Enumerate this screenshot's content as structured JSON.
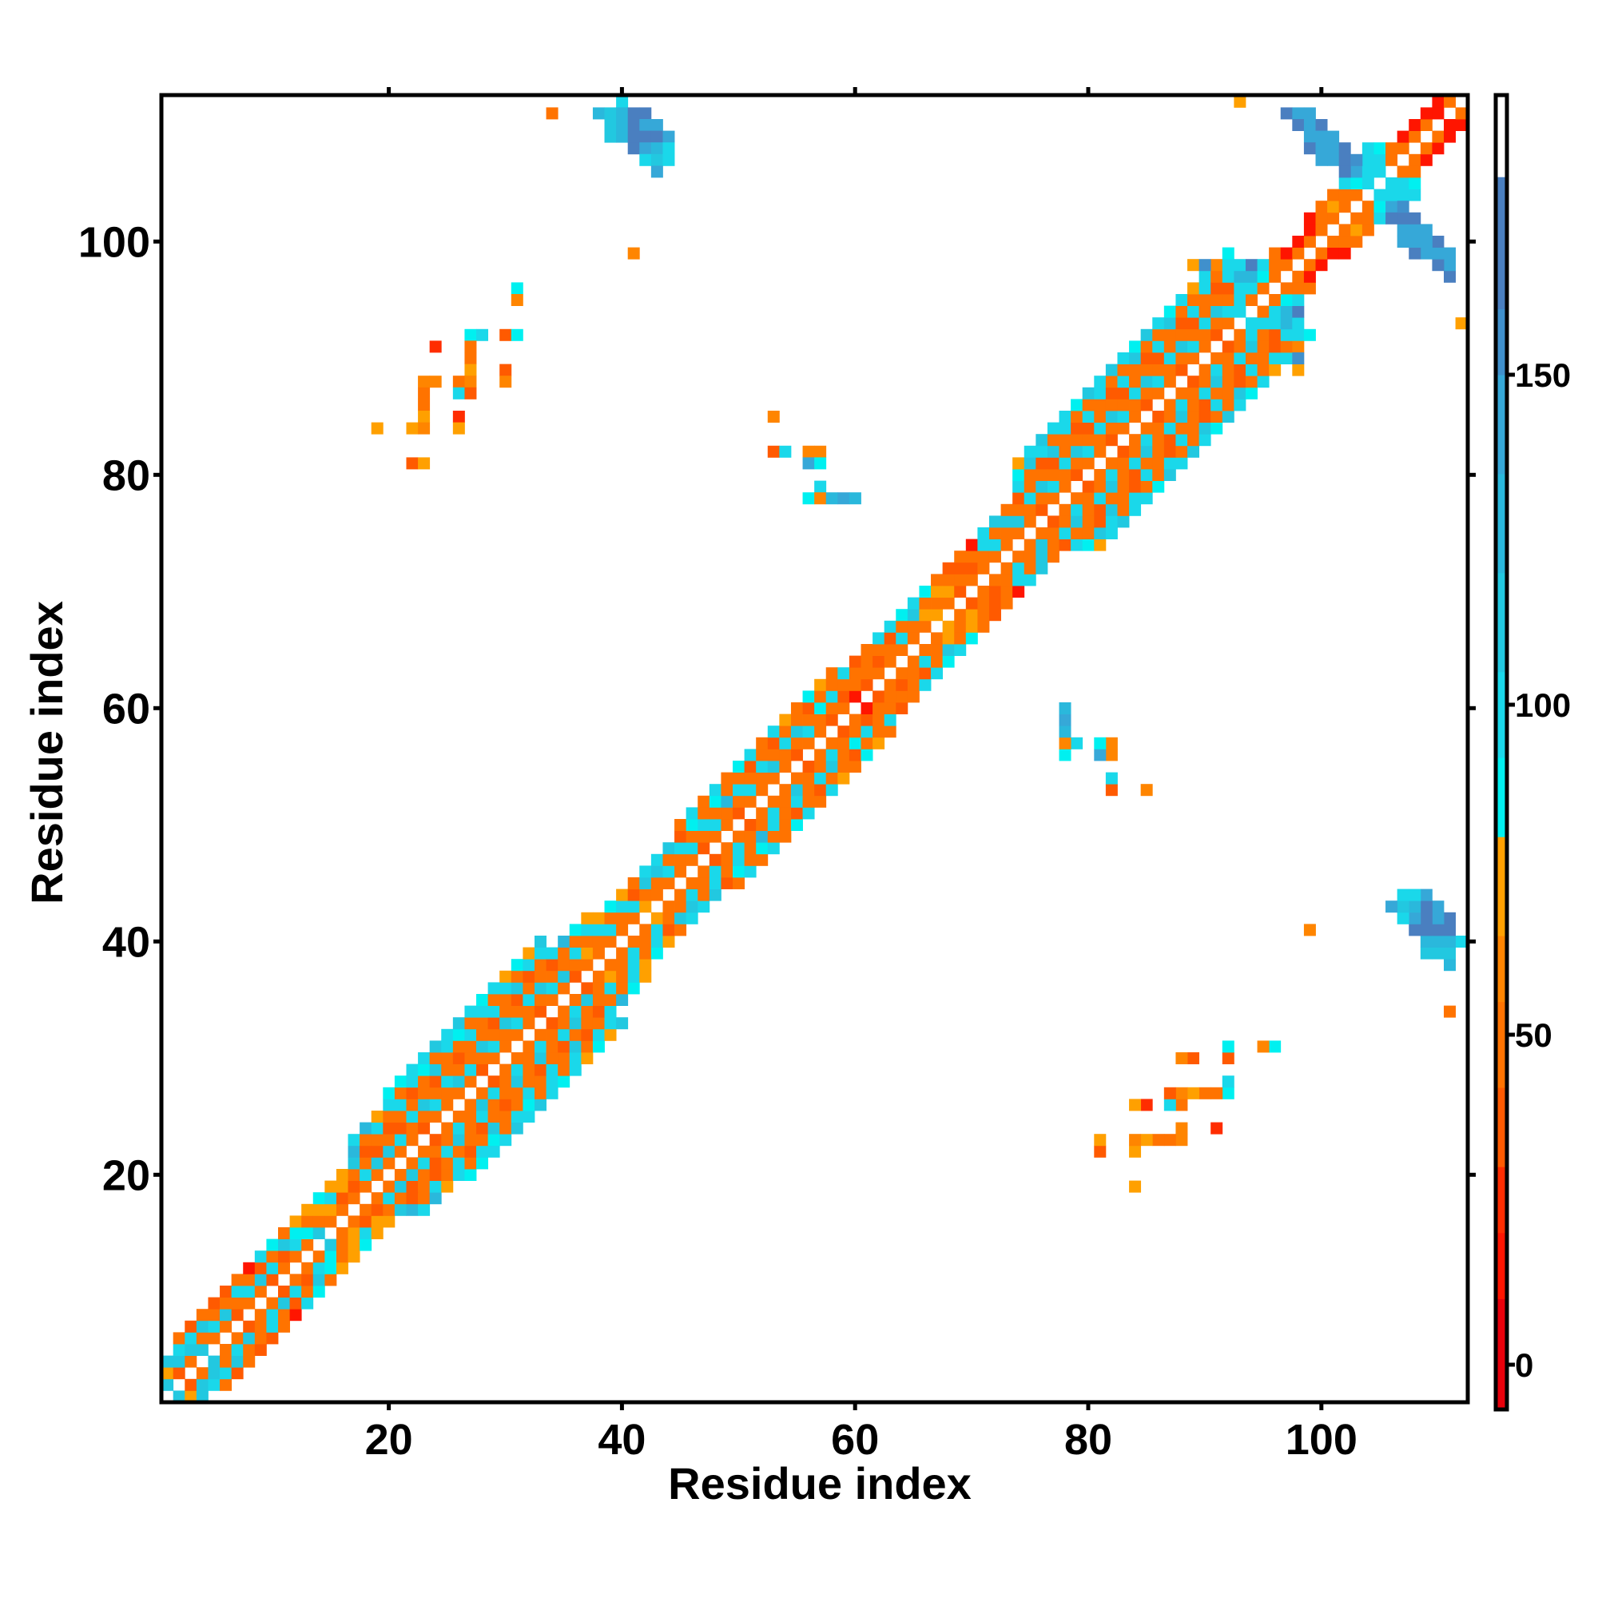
{
  "chart_data": {
    "type": "heatmap",
    "title": "",
    "xlabel": "Residue index",
    "ylabel": "Residue index",
    "xlim": [
      0.5,
      112.5
    ],
    "ylim": [
      0.5,
      112.5
    ],
    "xticks": [
      "20",
      "40",
      "60",
      "80",
      "100"
    ],
    "yticks": [
      "20",
      "40",
      "60",
      "80",
      "100"
    ],
    "xtick_values": [
      20,
      40,
      60,
      80,
      100
    ],
    "ytick_values": [
      20,
      40,
      60,
      80,
      100
    ],
    "grid": false,
    "symmetric": true,
    "colorbar": {
      "placement": "right",
      "range": [
        -6.8,
        192.4
      ],
      "ticks": [
        "0",
        "50",
        "100",
        "150"
      ],
      "tick_values": [
        0,
        50,
        100,
        150
      ],
      "scale": [
        [
          -7,
          "#e8000b"
        ],
        [
          10,
          "#ff1500"
        ],
        [
          20,
          "#ff2d00"
        ],
        [
          30,
          "#ff5a00"
        ],
        [
          42,
          "#ff7300"
        ],
        [
          55,
          "#ff8500"
        ],
        [
          65,
          "#ffa000"
        ],
        [
          80,
          "#00f0f0"
        ],
        [
          92,
          "#1ad8ea"
        ],
        [
          105,
          "#22c8e0"
        ],
        [
          120,
          "#2ab8dc"
        ],
        [
          135,
          "#36a8d8"
        ],
        [
          150,
          "#4090cc"
        ],
        [
          160,
          "#4a7fc0"
        ],
        [
          180,
          "#ffffff"
        ]
      ]
    },
    "band_note": "band_rows[i] lists values for cells (x=i+1, y=x+1..x+k)",
    "band_rows": [
      [
        105,
        70,
        105
      ],
      [
        40,
        105,
        100,
        45
      ],
      [
        45,
        105,
        100,
        30
      ],
      [
        105,
        45,
        105,
        45
      ],
      [
        45,
        100,
        45,
        30
      ],
      [
        45,
        105,
        45,
        40
      ],
      [
        30,
        45,
        100,
        45
      ],
      [
        45,
        100,
        45,
        10
      ],
      [
        45,
        105,
        40,
        100
      ],
      [
        40,
        100,
        45,
        90
      ],
      [
        45,
        40,
        105,
        45
      ],
      [
        45,
        100,
        90,
        70
      ],
      [
        45,
        90,
        45,
        70
      ],
      [
        105,
        45,
        70,
        90
      ],
      [
        45,
        70,
        100,
        70
      ],
      [
        45,
        40,
        70,
        70
      ],
      [
        45,
        40,
        45,
        105,
        125,
        100
      ],
      [
        45,
        100,
        45,
        30,
        45,
        125
      ],
      [
        45,
        105,
        40,
        45,
        100,
        70
      ],
      [
        45,
        105,
        45,
        30,
        45,
        100,
        90
      ],
      [
        45,
        100,
        30,
        45,
        100,
        45,
        90
      ],
      [
        45,
        45,
        100,
        45,
        30,
        100,
        100
      ],
      [
        30,
        45,
        105,
        45,
        45,
        90,
        100
      ],
      [
        45,
        100,
        45,
        30,
        105,
        45,
        105
      ],
      [
        45,
        45,
        100,
        45,
        45,
        100,
        100
      ],
      [
        45,
        105,
        45,
        30,
        45,
        90,
        105
      ],
      [
        45,
        100,
        45,
        45,
        100,
        45,
        100
      ],
      [
        30,
        45,
        105,
        45,
        45,
        100,
        90
      ],
      [
        45,
        100,
        45,
        30,
        100,
        45,
        100
      ],
      [
        45,
        45,
        105,
        45,
        45,
        100,
        70
      ],
      [
        45,
        100,
        45,
        30,
        105,
        45,
        90
      ],
      [
        45,
        45,
        100,
        45,
        40,
        100,
        70
      ],
      [
        30,
        45,
        105,
        45,
        45,
        100,
        105
      ],
      [
        45,
        100,
        45,
        30,
        100
      ],
      [
        45,
        105,
        45,
        45,
        125
      ],
      [
        30,
        45,
        100,
        45,
        90
      ],
      [
        45,
        70,
        45,
        100,
        70
      ],
      [
        45,
        45,
        100,
        70
      ],
      [
        45,
        100,
        45,
        90
      ],
      [
        45,
        45,
        100,
        70
      ],
      [
        45,
        100,
        30,
        45
      ],
      [
        70,
        45,
        105,
        100
      ],
      [
        45,
        45,
        105,
        100
      ],
      [
        45,
        100,
        45,
        105
      ],
      [
        45,
        45,
        100,
        30,
        45
      ],
      [
        45,
        100,
        45,
        90,
        100
      ],
      [
        30,
        45,
        100,
        45,
        45
      ],
      [
        45,
        100,
        45,
        90,
        100
      ],
      [
        45,
        45,
        125,
        45,
        45
      ],
      [
        30,
        45,
        100,
        45,
        90
      ],
      [
        45,
        100,
        45,
        30,
        100
      ],
      [
        45,
        45,
        100,
        45,
        45
      ],
      [
        45,
        105,
        45,
        30,
        100
      ],
      [
        45,
        45,
        100,
        45,
        70
      ],
      [
        30,
        45,
        105,
        45,
        45
      ],
      [
        45,
        100,
        45,
        30,
        90
      ],
      [
        45,
        45,
        90,
        45,
        70
      ],
      [
        30,
        45,
        100,
        45,
        45
      ],
      [
        45,
        30,
        45,
        100
      ],
      [
        10,
        45,
        45,
        30
      ],
      [
        30,
        45,
        45,
        45
      ],
      [
        45,
        30,
        45,
        100
      ],
      [
        45,
        45,
        30,
        100
      ],
      [
        45,
        100,
        45,
        90
      ],
      [
        45,
        45,
        105,
        100
      ],
      [
        45,
        70,
        45,
        90
      ],
      [
        70,
        45,
        70,
        45
      ],
      [
        45,
        70,
        45,
        30
      ],
      [
        30,
        45,
        30,
        45
      ],
      [
        45,
        30,
        45,
        10
      ],
      [
        45,
        45,
        100,
        100
      ],
      [
        45,
        100,
        45,
        105
      ],
      [
        45,
        45,
        105,
        45
      ],
      [
        45,
        105,
        45,
        30,
        100,
        90,
        70
      ],
      [
        45,
        45,
        100,
        45,
        45,
        105,
        100
      ],
      [
        30,
        45,
        105,
        45,
        30,
        100,
        105
      ],
      [
        45,
        100,
        45,
        30,
        105,
        45,
        100
      ],
      [
        45,
        45,
        100,
        45,
        45,
        100,
        100
      ],
      [
        30,
        45,
        105,
        45,
        30,
        45,
        90
      ],
      [
        45,
        100,
        45,
        30,
        100,
        45,
        105
      ],
      [
        45,
        45,
        100,
        45,
        45,
        100,
        100
      ],
      [
        30,
        45,
        105,
        45,
        30,
        45,
        105
      ],
      [
        45,
        100,
        45,
        30,
        100,
        45,
        100
      ],
      [
        45,
        45,
        100,
        45,
        45,
        105,
        90
      ],
      [
        30,
        45,
        105,
        45,
        30,
        45,
        105
      ],
      [
        45,
        100,
        45,
        30,
        100,
        45,
        100
      ],
      [
        45,
        45,
        100,
        45,
        45,
        105,
        90
      ],
      [
        30,
        45,
        105,
        45,
        30,
        45,
        100
      ],
      [
        45,
        100,
        45,
        30,
        100,
        45,
        70
      ],
      [
        45,
        45,
        100,
        45,
        45,
        100,
        70
      ],
      [
        30,
        45,
        105,
        45,
        30,
        45,
        105
      ],
      [
        45,
        100,
        45,
        30,
        100,
        100,
        90
      ],
      [
        100,
        100,
        100,
        130,
        100
      ],
      [
        45,
        100,
        130,
        160
      ],
      [
        45,
        90,
        100
      ],
      [
        45,
        45,
        45
      ],
      [
        45,
        10
      ],
      [
        45,
        10
      ],
      [
        45,
        15,
        15
      ],
      [
        45,
        45,
        45
      ],
      [
        45,
        70,
        45
      ],
      [
        45,
        45,
        100
      ],
      [
        45,
        90,
        130
      ],
      [
        100,
        100,
        100,
        100
      ],
      [
        100,
        100,
        90
      ],
      [
        45,
        45
      ],
      [
        45,
        15
      ],
      [
        45,
        10
      ],
      [
        45,
        10
      ],
      [
        10,
        10
      ],
      [
        45
      ]
    ],
    "cells": [
      [
        31,
        96,
        90
      ],
      [
        31,
        95,
        55
      ],
      [
        27,
        92,
        88
      ],
      [
        28,
        92,
        100
      ],
      [
        30,
        92,
        35
      ],
      [
        31,
        92,
        88
      ],
      [
        24,
        91,
        20
      ],
      [
        27,
        91,
        45
      ],
      [
        27,
        90,
        45
      ],
      [
        27,
        89,
        70
      ],
      [
        30,
        89,
        35
      ],
      [
        23,
        88,
        60
      ],
      [
        24,
        88,
        60
      ],
      [
        26,
        88,
        50
      ],
      [
        27,
        88,
        60
      ],
      [
        30,
        88,
        60
      ],
      [
        23,
        87,
        45
      ],
      [
        26,
        87,
        95
      ],
      [
        27,
        87,
        35
      ],
      [
        23,
        86,
        45
      ],
      [
        23,
        85,
        70
      ],
      [
        26,
        85,
        20
      ],
      [
        19,
        84,
        70
      ],
      [
        22,
        84,
        70
      ],
      [
        23,
        84,
        55
      ],
      [
        26,
        84,
        70
      ],
      [
        22,
        81,
        35
      ],
      [
        23,
        81,
        70
      ],
      [
        34,
        111,
        50
      ],
      [
        41,
        99,
        60
      ],
      [
        93,
        112,
        70
      ],
      [
        40,
        112,
        100
      ],
      [
        38,
        111,
        125
      ],
      [
        39,
        111,
        105
      ],
      [
        40,
        111,
        125
      ],
      [
        41,
        111,
        165
      ],
      [
        42,
        111,
        165
      ],
      [
        39,
        110,
        105
      ],
      [
        40,
        110,
        130
      ],
      [
        41,
        110,
        160
      ],
      [
        42,
        110,
        140
      ],
      [
        43,
        110,
        140
      ],
      [
        39,
        109,
        105
      ],
      [
        40,
        109,
        125
      ],
      [
        41,
        109,
        165
      ],
      [
        42,
        109,
        165
      ],
      [
        43,
        109,
        160
      ],
      [
        44,
        109,
        140
      ],
      [
        41,
        108,
        160
      ],
      [
        42,
        108,
        140
      ],
      [
        43,
        108,
        130
      ],
      [
        44,
        108,
        100
      ],
      [
        42,
        107,
        100
      ],
      [
        43,
        107,
        105
      ],
      [
        44,
        107,
        100
      ],
      [
        43,
        106,
        140
      ],
      [
        53,
        85,
        55
      ],
      [
        53,
        82,
        35
      ],
      [
        54,
        82,
        95
      ],
      [
        56,
        82,
        60
      ],
      [
        57,
        82,
        60
      ],
      [
        56,
        81,
        140
      ],
      [
        57,
        81,
        90
      ],
      [
        57,
        79,
        95
      ],
      [
        56,
        78,
        90
      ],
      [
        57,
        78,
        60
      ],
      [
        58,
        78,
        125
      ],
      [
        59,
        78,
        145
      ],
      [
        60,
        78,
        125
      ],
      [
        97,
        111,
        160
      ],
      [
        98,
        111,
        135
      ],
      [
        99,
        111,
        135
      ],
      [
        98,
        110,
        160
      ],
      [
        99,
        110,
        135
      ],
      [
        100,
        110,
        160
      ],
      [
        99,
        109,
        135
      ],
      [
        100,
        109,
        135
      ],
      [
        101,
        109,
        135
      ],
      [
        99,
        108,
        160
      ],
      [
        100,
        108,
        135
      ],
      [
        101,
        108,
        135
      ],
      [
        102,
        108,
        160
      ],
      [
        100,
        107,
        135
      ],
      [
        101,
        107,
        135
      ],
      [
        102,
        107,
        160
      ],
      [
        103,
        107,
        150
      ],
      [
        102,
        106,
        160
      ],
      [
        103,
        106,
        135
      ],
      [
        89,
        98,
        70
      ],
      [
        90,
        98,
        150
      ],
      [
        90,
        97,
        100
      ],
      [
        91,
        98,
        60
      ]
    ]
  }
}
